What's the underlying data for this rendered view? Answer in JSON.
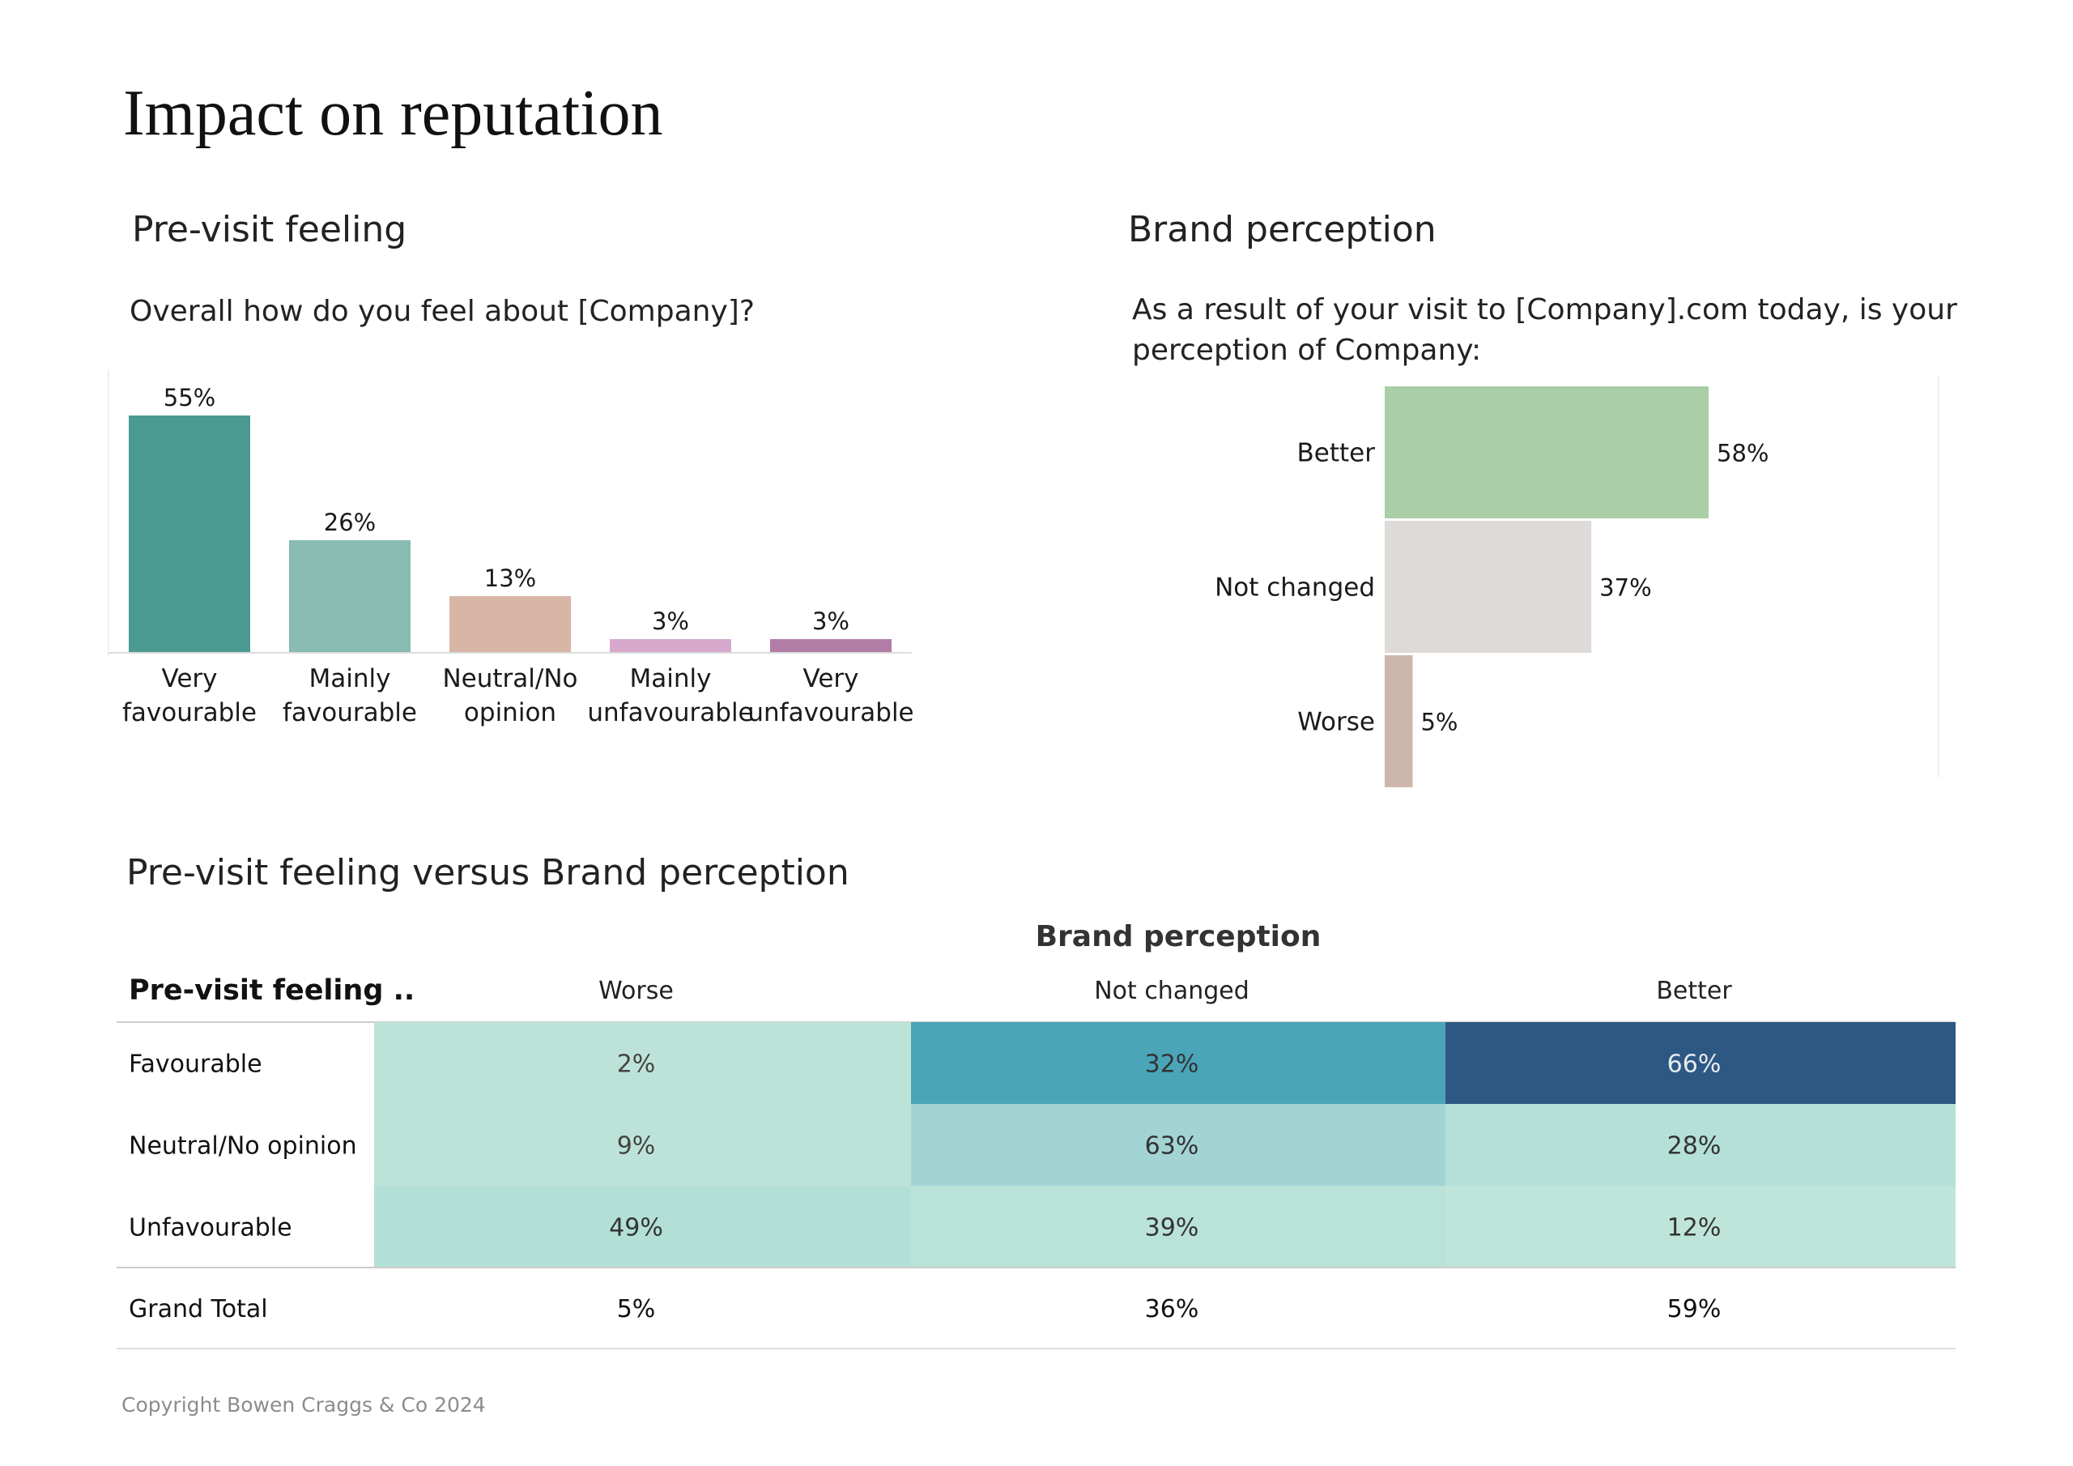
{
  "page": {
    "title": "Impact on reputation",
    "copyright": "Copyright Bowen Craggs & Co 2024"
  },
  "pre_visit": {
    "title": "Pre-visit feeling",
    "question": "Overall how do you feel about [Company]?"
  },
  "brand": {
    "title": "Brand perception",
    "question_line1": "As a result of your visit to [Company].com today, is your",
    "question_line2": "perception of Company:"
  },
  "versus": {
    "title": "Pre-visit feeling versus Brand perception"
  },
  "chart_data": [
    {
      "type": "bar",
      "title": "Pre-visit feeling",
      "subtitle": "Overall how do you feel about [Company]?",
      "categories": [
        [
          "Very",
          "favourable"
        ],
        [
          "Mainly",
          "favourable"
        ],
        [
          "Neutral/No",
          "opinion"
        ],
        [
          "Mainly",
          "unfavourable"
        ],
        [
          "Very",
          "unfavourable"
        ]
      ],
      "values": [
        55,
        26,
        13,
        3,
        3
      ],
      "data_labels": [
        "55%",
        "26%",
        "13%",
        "3%",
        "3%"
      ],
      "colors": [
        "#4a9a91",
        "#88bbb2",
        "#d8b6a6",
        "#d6a8cc",
        "#b17ca6"
      ],
      "ylim": [
        0,
        55
      ],
      "grid": false
    },
    {
      "type": "bar",
      "orientation": "horizontal",
      "title": "Brand perception",
      "subtitle": "As a result of your visit to [Company].com today, is your perception of Company:",
      "categories": [
        "Better",
        "Not changed",
        "Worse"
      ],
      "values": [
        58,
        37,
        5
      ],
      "data_labels": [
        "58%",
        "37%",
        "5%"
      ],
      "colors": [
        "#aacfa6",
        "#dedad7",
        "#cdb6ac"
      ],
      "xlim": [
        0,
        58
      ],
      "grid": false
    },
    {
      "type": "heatmap",
      "title": "Pre-visit feeling versus Brand perception",
      "column_group_header": "Brand perception",
      "row_header": "Pre-visit feeling ..",
      "columns": [
        "Worse",
        "Not changed",
        "Better"
      ],
      "rows": [
        {
          "label": "Favourable",
          "values": [
            2,
            32,
            66
          ],
          "labels": [
            "2%",
            "32%",
            "66%"
          ],
          "colors": [
            "#bde3d9",
            "#4aa5b9",
            "#2e5884"
          ],
          "text_colors": [
            "#444444",
            "#333333",
            "#e6ecf2"
          ]
        },
        {
          "label": "Neutral/No opinion",
          "values": [
            9,
            63,
            28
          ],
          "labels": [
            "9%",
            "63%",
            "28%"
          ],
          "colors": [
            "#bde3d9",
            "#a3d4d4",
            "#b4e0d8"
          ],
          "text_colors": [
            "#444444",
            "#333333",
            "#333333"
          ]
        },
        {
          "label": "Unfavourable",
          "values": [
            49,
            39,
            12
          ],
          "labels": [
            "49%",
            "39%",
            "12%"
          ],
          "colors": [
            "#b3e0d6",
            "#b9e2d8",
            "#bfe5da"
          ],
          "text_colors": [
            "#333333",
            "#333333",
            "#333333"
          ]
        }
      ],
      "total": {
        "label": "Grand Total",
        "values": [
          5,
          36,
          59
        ],
        "labels": [
          "5%",
          "36%",
          "59%"
        ]
      }
    }
  ]
}
